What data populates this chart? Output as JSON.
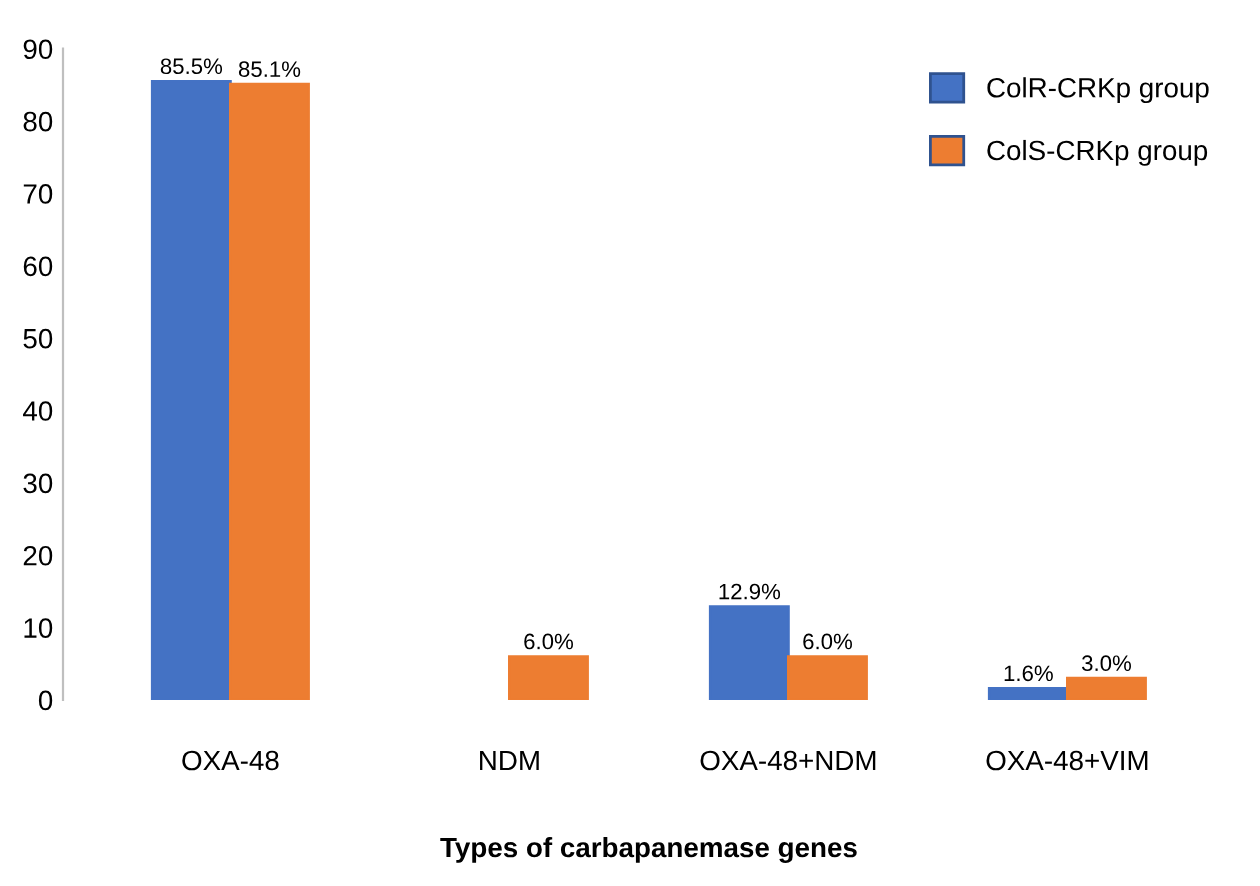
{
  "chart_data": {
    "type": "bar",
    "xlabel": "Types of carbapanemase genes",
    "categories": [
      "OXA-48",
      "NDM",
      "OXA-48+NDM",
      "OXA-48+VIM"
    ],
    "series": [
      {
        "name": "ColR-CRKp group",
        "color": "#4472c4",
        "values": [
          85.5,
          null,
          12.9,
          1.6
        ],
        "value_labels": [
          "85.5%",
          null,
          "12.9%",
          "1.6%"
        ]
      },
      {
        "name": "ColS-CRKp group",
        "color": "#ed7d31",
        "values": [
          85.1,
          6.0,
          6.0,
          3.0
        ],
        "value_labels": [
          "85.1%",
          "6.0%",
          "6.0%",
          "3.0%"
        ]
      }
    ],
    "ylim": [
      0,
      90
    ],
    "yticks": [
      0,
      10,
      20,
      30,
      40,
      50,
      60,
      70,
      80,
      90
    ],
    "grid": false,
    "legend": "top right"
  }
}
